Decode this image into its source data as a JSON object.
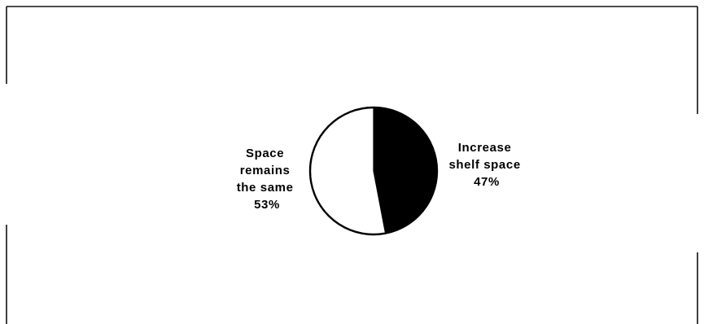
{
  "chart_data": {
    "type": "pie",
    "title": "",
    "slices": [
      {
        "label_lines": [
          "Increase",
          "shelf space"
        ],
        "value": 47,
        "value_label": "47%",
        "color": "#000000"
      },
      {
        "label_lines": [
          "Space",
          "remains",
          "the same"
        ],
        "value": 53,
        "value_label": "53%",
        "color": "#ffffff"
      }
    ],
    "start_angle_deg": 0,
    "direction": "clockwise",
    "outline_color": "#000000",
    "legend": "none"
  }
}
